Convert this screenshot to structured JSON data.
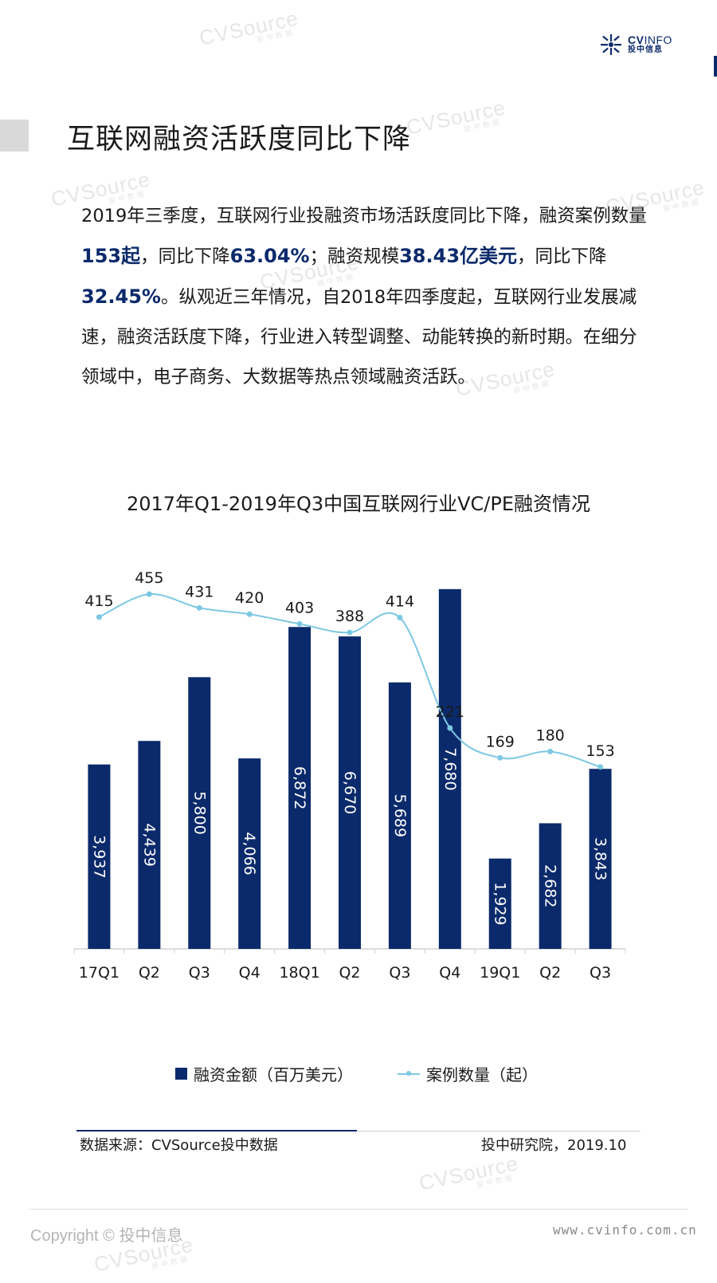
{
  "watermark": {
    "text": "CVSource",
    "sub": "投中数据"
  },
  "logo": {
    "brand_cv": "CV",
    "brand_info": "INFO",
    "sub": "投中信息"
  },
  "title": "互联网融资活跃度同比下降",
  "paragraph": {
    "s1": "2019年三季度，互联网行业投融资市场活跃度同比下降，融资案例数量",
    "h1": "153起",
    "s2": "，同比下降",
    "h2": "63.04%",
    "s3": "；融资规模",
    "h3": "38.43亿美元",
    "s4": "，同比下降",
    "h4": "32.45%",
    "s5": "。纵观近三年情况，自2018年四季度起，互联网行业发展减速，融资活跃度下降，行业进入转型调整、动能转换的新时期。在细分领域中，电子商务、大数据等热点领域融资活跃。"
  },
  "chart_data": {
    "type": "bar",
    "title": "2017年Q1-2019年Q3中国互联网行业VC/PE融资情况",
    "categories": [
      "17Q1",
      "Q2",
      "Q3",
      "Q4",
      "18Q1",
      "Q2",
      "Q3",
      "Q4",
      "19Q1",
      "Q2",
      "Q3"
    ],
    "series": [
      {
        "name": "融资金额（百万美元）",
        "type": "bar",
        "color": "#0b2a6b",
        "values": [
          3937,
          4439,
          5800,
          4066,
          6872,
          6670,
          5689,
          7680,
          1929,
          2682,
          3843
        ],
        "labels": [
          "3,937",
          "4,439",
          "5,800",
          "4,066",
          "6,872",
          "6,670",
          "5,689",
          "7,680",
          "1,929",
          "2,682",
          "3,843"
        ]
      },
      {
        "name": "案例数量（起）",
        "type": "line",
        "color": "#7cc8e2",
        "values": [
          415,
          455,
          431,
          420,
          403,
          388,
          414,
          221,
          169,
          180,
          153
        ]
      }
    ],
    "bar_axis_range": [
      0,
      8000
    ],
    "line_axis_range": [
      -165,
      490
    ],
    "legend": "bottom",
    "grid": false
  },
  "source": {
    "left": "数据来源：CVSource投中数据",
    "right": "投中研究院，2019.10"
  },
  "footer": {
    "copyright": "Copyright © 投中信息",
    "url": "www.cvinfo.com.cn"
  }
}
